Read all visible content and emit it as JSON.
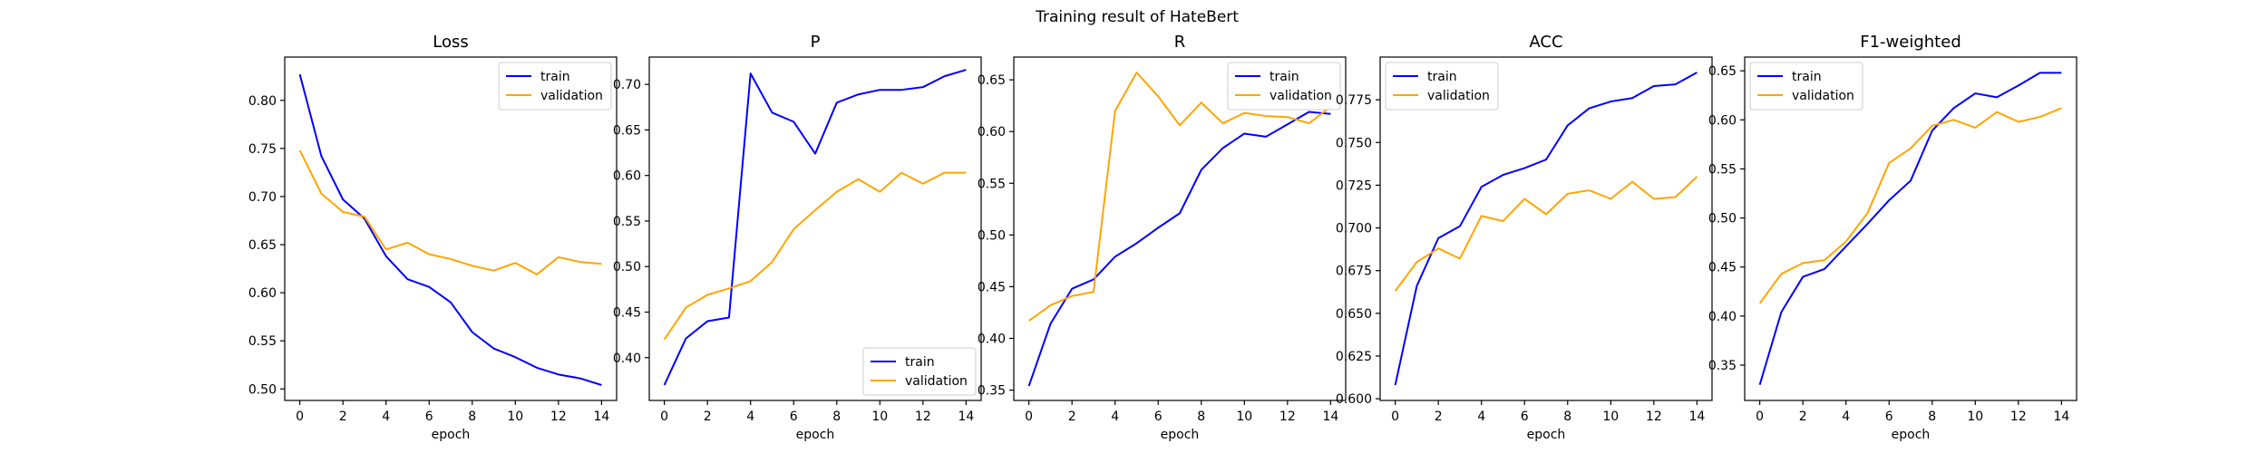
{
  "figure": {
    "title": "Training result of HateBert"
  },
  "colors": {
    "train": "#0000ff",
    "validation": "#ffa500",
    "axes": "#000000",
    "legend_border": "#cccccc"
  },
  "chart_data": [
    {
      "type": "line",
      "title": "Loss",
      "xlabel": "epoch",
      "ylabel": "",
      "xlim": [
        -0.7,
        14.7
      ],
      "ylim": [
        0.488,
        0.845
      ],
      "xticks": [
        0,
        2,
        4,
        6,
        8,
        10,
        12,
        14
      ],
      "yticks": [
        0.5,
        0.55,
        0.6,
        0.65,
        0.7,
        0.75,
        0.8
      ],
      "legend": "top-right",
      "x": [
        0,
        1,
        2,
        3,
        4,
        5,
        6,
        7,
        8,
        9,
        10,
        11,
        12,
        13,
        14
      ],
      "series": [
        {
          "name": "train",
          "values": [
            0.827,
            0.742,
            0.697,
            0.677,
            0.638,
            0.614,
            0.606,
            0.59,
            0.559,
            0.542,
            0.533,
            0.522,
            0.515,
            0.511,
            0.504
          ]
        },
        {
          "name": "validation",
          "values": [
            0.748,
            0.703,
            0.684,
            0.679,
            0.645,
            0.652,
            0.64,
            0.635,
            0.628,
            0.623,
            0.631,
            0.619,
            0.637,
            0.632,
            0.63
          ]
        }
      ]
    },
    {
      "type": "line",
      "title": "P",
      "xlabel": "epoch",
      "ylabel": "",
      "xlim": [
        -0.7,
        14.7
      ],
      "ylim": [
        0.353,
        0.73
      ],
      "xticks": [
        0,
        2,
        4,
        6,
        8,
        10,
        12,
        14
      ],
      "yticks": [
        0.4,
        0.45,
        0.5,
        0.55,
        0.6,
        0.65,
        0.7
      ],
      "legend": "lower-right",
      "x": [
        0,
        1,
        2,
        3,
        4,
        5,
        6,
        7,
        8,
        9,
        10,
        11,
        12,
        13,
        14
      ],
      "series": [
        {
          "name": "train",
          "values": [
            0.37,
            0.421,
            0.44,
            0.444,
            0.712,
            0.669,
            0.659,
            0.624,
            0.68,
            0.689,
            0.694,
            0.694,
            0.697,
            0.709,
            0.716
          ]
        },
        {
          "name": "validation",
          "values": [
            0.42,
            0.455,
            0.469,
            0.476,
            0.484,
            0.505,
            0.541,
            0.562,
            0.582,
            0.596,
            0.582,
            0.603,
            0.591,
            0.603,
            0.603
          ]
        }
      ]
    },
    {
      "type": "line",
      "title": "R",
      "xlabel": "epoch",
      "ylabel": "",
      "xlim": [
        -0.7,
        14.7
      ],
      "ylim": [
        0.34,
        0.672
      ],
      "xticks": [
        0,
        2,
        4,
        6,
        8,
        10,
        12,
        14
      ],
      "yticks": [
        0.35,
        0.4,
        0.45,
        0.5,
        0.55,
        0.6,
        0.65
      ],
      "legend": "top-right",
      "x": [
        0,
        1,
        2,
        3,
        4,
        5,
        6,
        7,
        8,
        9,
        10,
        11,
        12,
        13,
        14
      ],
      "series": [
        {
          "name": "train",
          "values": [
            0.354,
            0.414,
            0.448,
            0.457,
            0.479,
            0.492,
            0.507,
            0.521,
            0.563,
            0.584,
            0.598,
            0.595,
            0.607,
            0.619,
            0.617
          ]
        },
        {
          "name": "validation",
          "values": [
            0.417,
            0.432,
            0.441,
            0.445,
            0.62,
            0.657,
            0.634,
            0.606,
            0.628,
            0.608,
            0.618,
            0.615,
            0.614,
            0.608,
            0.624
          ]
        }
      ]
    },
    {
      "type": "line",
      "title": "ACC",
      "xlabel": "epoch",
      "ylabel": "",
      "xlim": [
        -0.7,
        14.7
      ],
      "ylim": [
        0.599,
        0.8
      ],
      "xticks": [
        0,
        2,
        4,
        6,
        8,
        10,
        12,
        14
      ],
      "yticks": [
        0.6,
        0.625,
        0.65,
        0.675,
        0.7,
        0.725,
        0.75,
        0.775
      ],
      "legend": "top-left",
      "x": [
        0,
        1,
        2,
        3,
        4,
        5,
        6,
        7,
        8,
        9,
        10,
        11,
        12,
        13,
        14
      ],
      "series": [
        {
          "name": "train",
          "values": [
            0.608,
            0.666,
            0.694,
            0.701,
            0.724,
            0.731,
            0.735,
            0.74,
            0.76,
            0.77,
            0.774,
            0.776,
            0.783,
            0.784,
            0.791
          ]
        },
        {
          "name": "validation",
          "values": [
            0.663,
            0.68,
            0.688,
            0.682,
            0.707,
            0.704,
            0.717,
            0.708,
            0.72,
            0.722,
            0.717,
            0.727,
            0.717,
            0.718,
            0.73
          ]
        }
      ]
    },
    {
      "type": "line",
      "title": "F1-weighted",
      "xlabel": "epoch",
      "ylabel": "",
      "xlim": [
        -0.7,
        14.7
      ],
      "ylim": [
        0.314,
        0.664
      ],
      "xticks": [
        0,
        2,
        4,
        6,
        8,
        10,
        12,
        14
      ],
      "yticks": [
        0.35,
        0.4,
        0.45,
        0.5,
        0.55,
        0.6,
        0.65
      ],
      "legend": "top-left",
      "x": [
        0,
        1,
        2,
        3,
        4,
        5,
        6,
        7,
        8,
        9,
        10,
        11,
        12,
        13,
        14
      ],
      "series": [
        {
          "name": "train",
          "values": [
            0.33,
            0.404,
            0.44,
            0.448,
            0.471,
            0.494,
            0.518,
            0.538,
            0.589,
            0.612,
            0.627,
            0.623,
            0.635,
            0.648,
            0.648
          ]
        },
        {
          "name": "validation",
          "values": [
            0.413,
            0.443,
            0.454,
            0.457,
            0.476,
            0.505,
            0.556,
            0.571,
            0.594,
            0.6,
            0.592,
            0.608,
            0.598,
            0.603,
            0.612
          ]
        }
      ]
    }
  ]
}
